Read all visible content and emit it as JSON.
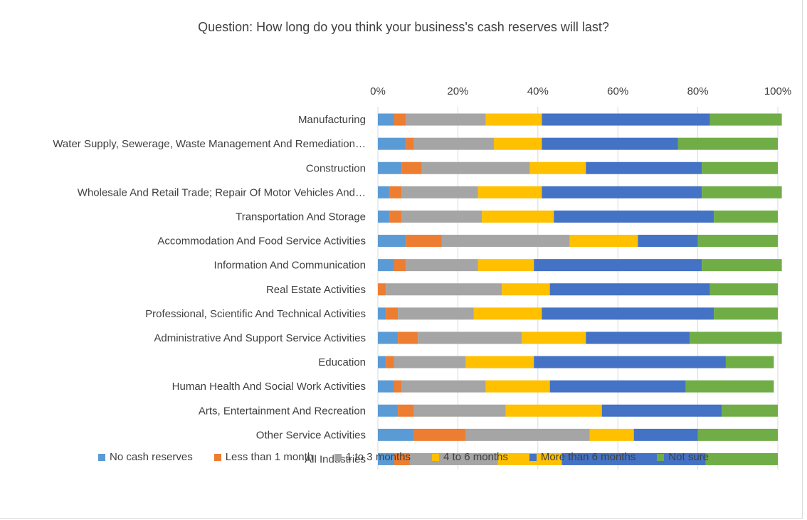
{
  "chart_data": {
    "type": "bar",
    "orientation": "horizontal",
    "stacked": "percent",
    "title": "Question: How long do you think your business's cash reserves will last?",
    "categories": [
      "Manufacturing",
      "Water Supply, Sewerage, Waste Management And Remediation…",
      "Construction",
      "Wholesale And Retail Trade; Repair Of Motor Vehicles And…",
      "Transportation And Storage",
      "Accommodation And Food Service Activities",
      "Information And Communication",
      "Real Estate Activities",
      "Professional, Scientific And Technical Activities",
      "Administrative And Support Service Activities",
      "Education",
      "Human Health And Social Work Activities",
      "Arts, Entertainment And Recreation",
      "Other Service Activities",
      "All Industries"
    ],
    "series": [
      {
        "name": "No cash reserves",
        "color": "#5b9bd5",
        "values": [
          4,
          7,
          6,
          3,
          3,
          7,
          4,
          0,
          2,
          5,
          2,
          4,
          5,
          9,
          4
        ]
      },
      {
        "name": "Less than 1 month",
        "color": "#ed7d31",
        "values": [
          3,
          2,
          5,
          3,
          3,
          9,
          3,
          2,
          3,
          5,
          2,
          2,
          4,
          13,
          4
        ]
      },
      {
        "name": "1 to 3 months",
        "color": "#a5a5a5",
        "values": [
          20,
          20,
          27,
          19,
          20,
          32,
          18,
          29,
          19,
          26,
          18,
          21,
          23,
          31,
          22
        ]
      },
      {
        "name": "4 to 6 months",
        "color": "#ffc000",
        "values": [
          14,
          12,
          14,
          16,
          18,
          17,
          14,
          12,
          17,
          16,
          17,
          16,
          24,
          11,
          16
        ]
      },
      {
        "name": "More than 6 months",
        "color": "#4472c4",
        "values": [
          42,
          34,
          29,
          40,
          40,
          15,
          42,
          40,
          43,
          26,
          48,
          34,
          30,
          16,
          36
        ]
      },
      {
        "name": "Not sure",
        "color": "#70ad47",
        "values": [
          18,
          25,
          19,
          20,
          16,
          20,
          20,
          17,
          16,
          23,
          12,
          22,
          14,
          20,
          18
        ]
      }
    ],
    "xlim": [
      0,
      100
    ],
    "x_ticks": [
      "0%",
      "20%",
      "40%",
      "60%",
      "80%",
      "100%"
    ],
    "grid": true,
    "legend_position": "bottom"
  }
}
